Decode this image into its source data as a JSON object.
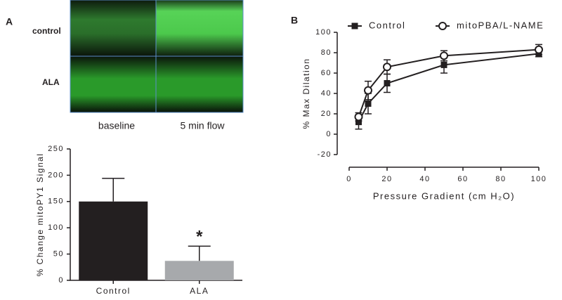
{
  "figure": {
    "panel_labels": [
      "A",
      "B"
    ],
    "image_rows": [
      "control",
      "ALA"
    ],
    "image_columns": [
      "baseline",
      "5 min flow"
    ]
  },
  "chart_data": [
    {
      "type": "bar",
      "y_label": "% Change mitoPY1 Signal",
      "categories": [
        "Control",
        "ALA"
      ],
      "values": [
        150,
        37
      ],
      "errors": [
        44,
        28
      ],
      "colors": [
        "#231f20",
        "#a7a9ac"
      ],
      "annotation": "*",
      "ylim": [
        0,
        250
      ],
      "yticks": [
        0,
        50,
        100,
        150,
        200,
        250
      ]
    },
    {
      "type": "line",
      "x_label": "Pressure Gradient (cm H₂O)",
      "y_label": "% Max Dilation",
      "x": [
        5,
        10,
        20,
        50,
        100
      ],
      "series": [
        {
          "name": "Control",
          "color": "#231f20",
          "marker": "filled-square",
          "values": [
            12,
            30,
            50,
            68,
            79
          ],
          "errors": [
            7,
            10,
            9,
            8,
            3
          ]
        },
        {
          "name": "mitoPBA/L-NAME",
          "color": "#231f20",
          "marker": "open-circle",
          "values": [
            17,
            43,
            66,
            77,
            83
          ],
          "errors": [
            4,
            9,
            7,
            5,
            5
          ]
        }
      ],
      "xlim": [
        0,
        100
      ],
      "xticks": [
        0,
        20,
        40,
        60,
        80,
        100
      ],
      "ylim": [
        -20,
        100
      ],
      "yticks": [
        -20,
        0,
        20,
        40,
        60,
        80,
        100
      ],
      "legend": "top"
    }
  ]
}
